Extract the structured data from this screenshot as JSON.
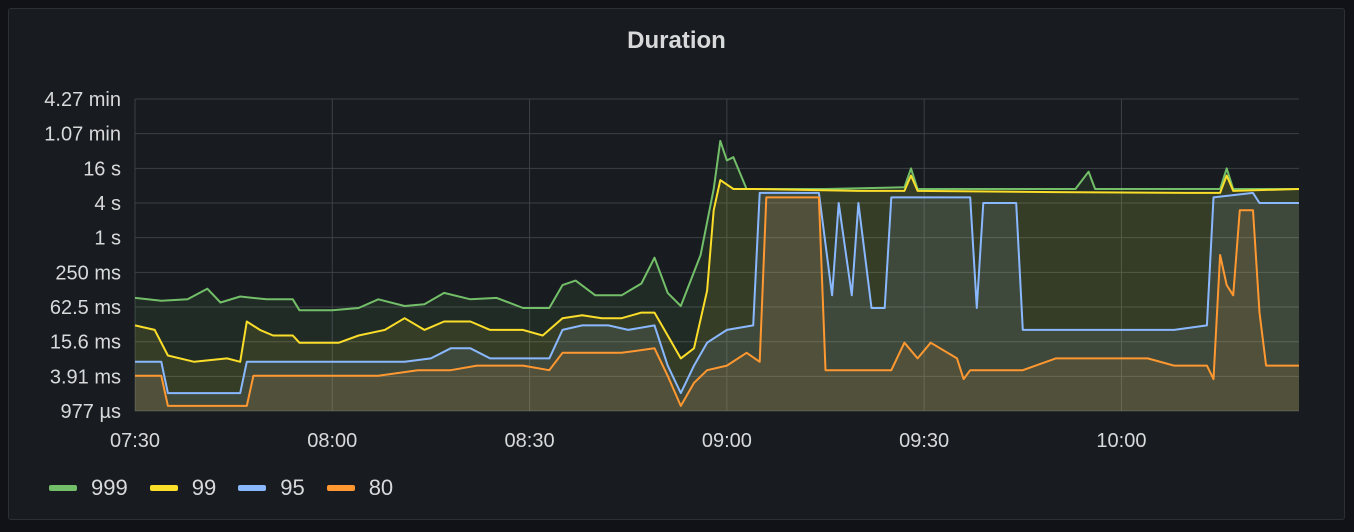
{
  "panel": {
    "title": "Duration"
  },
  "colors": {
    "background": "#181b1f",
    "grid": "#3d4046",
    "text": "#d8d9da"
  },
  "chart_data": {
    "type": "line",
    "title": "Duration",
    "xlabel": "",
    "ylabel": "",
    "y_scale": "log",
    "y_ticks": [
      "4.27 min",
      "1.07 min",
      "16 s",
      "4 s",
      "1 s",
      "250 ms",
      "62.5 ms",
      "15.6 ms",
      "3.91 ms",
      "977 µs"
    ],
    "x_ticks": [
      "07:30",
      "08:00",
      "08:30",
      "09:00",
      "09:30",
      "10:00"
    ],
    "x_range": [
      "07:30",
      "10:27"
    ],
    "grid": true,
    "legend_position": "bottom-left",
    "series": [
      {
        "name": "999",
        "color": "#73bf69",
        "points": [
          [
            "07:30",
            "90 ms"
          ],
          [
            "07:34",
            "80 ms"
          ],
          [
            "07:38",
            "85 ms"
          ],
          [
            "07:41",
            "130 ms"
          ],
          [
            "07:43",
            "75 ms"
          ],
          [
            "07:46",
            "95 ms"
          ],
          [
            "07:50",
            "85 ms"
          ],
          [
            "07:54",
            "85 ms"
          ],
          [
            "07:55",
            "55 ms"
          ],
          [
            "08:00",
            "55 ms"
          ],
          [
            "08:04",
            "60 ms"
          ],
          [
            "08:07",
            "85 ms"
          ],
          [
            "08:11",
            "65 ms"
          ],
          [
            "08:14",
            "70 ms"
          ],
          [
            "08:17",
            "110 ms"
          ],
          [
            "08:21",
            "85 ms"
          ],
          [
            "08:25",
            "90 ms"
          ],
          [
            "08:29",
            "60 ms"
          ],
          [
            "08:33",
            "60 ms"
          ],
          [
            "08:35",
            "150 ms"
          ],
          [
            "08:37",
            "180 ms"
          ],
          [
            "08:40",
            "100 ms"
          ],
          [
            "08:44",
            "100 ms"
          ],
          [
            "08:47",
            "160 ms"
          ],
          [
            "08:49",
            "450 ms"
          ],
          [
            "08:51",
            "110 ms"
          ],
          [
            "08:53",
            "65 ms"
          ],
          [
            "08:56",
            "500 ms"
          ],
          [
            "08:58",
            "7 s"
          ],
          [
            "08:59",
            "48 s"
          ],
          [
            "09:00",
            "22 s"
          ],
          [
            "09:01",
            "25 s"
          ],
          [
            "09:03",
            "7 s"
          ],
          [
            "09:15",
            "7 s"
          ],
          [
            "09:27",
            "7.5 s"
          ],
          [
            "09:28",
            "16 s"
          ],
          [
            "09:29",
            "7 s"
          ],
          [
            "09:53",
            "7 s"
          ],
          [
            "09:55",
            "14 s"
          ],
          [
            "09:56",
            "7 s"
          ],
          [
            "10:15",
            "7 s"
          ],
          [
            "10:16",
            "16 s"
          ],
          [
            "10:17",
            "7 s"
          ],
          [
            "10:27",
            "7 s"
          ]
        ]
      },
      {
        "name": "99",
        "color": "#fade2a",
        "points": [
          [
            "07:30",
            "30 ms"
          ],
          [
            "07:33",
            "25 ms"
          ],
          [
            "07:35",
            "9 ms"
          ],
          [
            "07:39",
            "7 ms"
          ],
          [
            "07:44",
            "8 ms"
          ],
          [
            "07:46",
            "7 ms"
          ],
          [
            "07:47",
            "35 ms"
          ],
          [
            "07:49",
            "25 ms"
          ],
          [
            "07:51",
            "20 ms"
          ],
          [
            "07:54",
            "20 ms"
          ],
          [
            "07:55",
            "15 ms"
          ],
          [
            "08:01",
            "15 ms"
          ],
          [
            "08:04",
            "20 ms"
          ],
          [
            "08:08",
            "25 ms"
          ],
          [
            "08:11",
            "40 ms"
          ],
          [
            "08:14",
            "25 ms"
          ],
          [
            "08:17",
            "35 ms"
          ],
          [
            "08:21",
            "35 ms"
          ],
          [
            "08:24",
            "25 ms"
          ],
          [
            "08:29",
            "25 ms"
          ],
          [
            "08:32",
            "20 ms"
          ],
          [
            "08:35",
            "40 ms"
          ],
          [
            "08:38",
            "45 ms"
          ],
          [
            "08:41",
            "40 ms"
          ],
          [
            "08:44",
            "40 ms"
          ],
          [
            "08:47",
            "50 ms"
          ],
          [
            "08:49",
            "50 ms"
          ],
          [
            "08:51",
            "20 ms"
          ],
          [
            "08:53",
            "8 ms"
          ],
          [
            "08:55",
            "12 ms"
          ],
          [
            "08:57",
            "120 ms"
          ],
          [
            "08:58",
            "3 s"
          ],
          [
            "08:59",
            "10 s"
          ],
          [
            "09:01",
            "7 s"
          ],
          [
            "09:04",
            "7 s"
          ],
          [
            "09:20",
            "6.5 s"
          ],
          [
            "09:27",
            "6.5 s"
          ],
          [
            "09:28",
            "12 s"
          ],
          [
            "09:29",
            "6.5 s"
          ],
          [
            "09:50",
            "6.2 s"
          ],
          [
            "10:10",
            "6 s"
          ],
          [
            "10:15",
            "6 s"
          ],
          [
            "10:16",
            "12 s"
          ],
          [
            "10:17",
            "6.5 s"
          ],
          [
            "10:27",
            "7 s"
          ]
        ]
      },
      {
        "name": "95",
        "color": "#8ab8ff",
        "points": [
          [
            "07:30",
            "7 ms"
          ],
          [
            "07:34",
            "7 ms"
          ],
          [
            "07:35",
            "2 ms"
          ],
          [
            "07:44",
            "2 ms"
          ],
          [
            "07:46",
            "2 ms"
          ],
          [
            "07:47",
            "7 ms"
          ],
          [
            "07:54",
            "7 ms"
          ],
          [
            "07:55",
            "7 ms"
          ],
          [
            "08:01",
            "7 ms"
          ],
          [
            "08:04",
            "7 ms"
          ],
          [
            "08:08",
            "7 ms"
          ],
          [
            "08:11",
            "7 ms"
          ],
          [
            "08:15",
            "8 ms"
          ],
          [
            "08:18",
            "12 ms"
          ],
          [
            "08:21",
            "12 ms"
          ],
          [
            "08:24",
            "8 ms"
          ],
          [
            "08:29",
            "8 ms"
          ],
          [
            "08:33",
            "8 ms"
          ],
          [
            "08:35",
            "25 ms"
          ],
          [
            "08:38",
            "30 ms"
          ],
          [
            "08:42",
            "30 ms"
          ],
          [
            "08:45",
            "25 ms"
          ],
          [
            "08:49",
            "30 ms"
          ],
          [
            "08:51",
            "6 ms"
          ],
          [
            "08:53",
            "2 ms"
          ],
          [
            "08:55",
            "6 ms"
          ],
          [
            "08:57",
            "15 ms"
          ],
          [
            "09:00",
            "25 ms"
          ],
          [
            "09:04",
            "30 ms"
          ],
          [
            "09:05",
            "6 s"
          ],
          [
            "09:14",
            "6 s"
          ],
          [
            "09:16",
            "100 ms"
          ],
          [
            "09:17",
            "4 s"
          ],
          [
            "09:19",
            "100 ms"
          ],
          [
            "09:20",
            "4 s"
          ],
          [
            "09:22",
            "60 ms"
          ],
          [
            "09:24",
            "60 ms"
          ],
          [
            "09:25",
            "5 s"
          ],
          [
            "09:37",
            "5 s"
          ],
          [
            "09:38",
            "60 ms"
          ],
          [
            "09:39",
            "4 s"
          ],
          [
            "09:44",
            "4 s"
          ],
          [
            "09:45",
            "25 ms"
          ],
          [
            "09:52",
            "25 ms"
          ],
          [
            "10:00",
            "25 ms"
          ],
          [
            "10:08",
            "25 ms"
          ],
          [
            "10:13",
            "30 ms"
          ],
          [
            "10:14",
            "5 s"
          ],
          [
            "10:20",
            "6 s"
          ],
          [
            "10:21",
            "4 s"
          ],
          [
            "10:27",
            "4 s"
          ]
        ]
      },
      {
        "name": "80",
        "color": "#ff9830",
        "points": [
          [
            "07:30",
            "4 ms"
          ],
          [
            "07:34",
            "4 ms"
          ],
          [
            "07:35",
            "1.2 ms"
          ],
          [
            "07:47",
            "1.2 ms"
          ],
          [
            "07:48",
            "4 ms"
          ],
          [
            "08:01",
            "4 ms"
          ],
          [
            "08:07",
            "4 ms"
          ],
          [
            "08:13",
            "5 ms"
          ],
          [
            "08:18",
            "5 ms"
          ],
          [
            "08:22",
            "6 ms"
          ],
          [
            "08:29",
            "6 ms"
          ],
          [
            "08:33",
            "5 ms"
          ],
          [
            "08:35",
            "10 ms"
          ],
          [
            "08:39",
            "10 ms"
          ],
          [
            "08:44",
            "10 ms"
          ],
          [
            "08:49",
            "12 ms"
          ],
          [
            "08:51",
            "4 ms"
          ],
          [
            "08:53",
            "1.2 ms"
          ],
          [
            "08:55",
            "3 ms"
          ],
          [
            "08:57",
            "5 ms"
          ],
          [
            "09:00",
            "6 ms"
          ],
          [
            "09:03",
            "10 ms"
          ],
          [
            "09:05",
            "7 ms"
          ],
          [
            "09:06",
            "5 s"
          ],
          [
            "09:14",
            "5 s"
          ],
          [
            "09:15",
            "5 ms"
          ],
          [
            "09:25",
            "5 ms"
          ],
          [
            "09:27",
            "15 ms"
          ],
          [
            "09:29",
            "8 ms"
          ],
          [
            "09:31",
            "15 ms"
          ],
          [
            "09:35",
            "8 ms"
          ],
          [
            "09:36",
            "3.5 ms"
          ],
          [
            "09:37",
            "5 ms"
          ],
          [
            "09:45",
            "5 ms"
          ],
          [
            "09:50",
            "8 ms"
          ],
          [
            "09:55",
            "8 ms"
          ],
          [
            "10:00",
            "8 ms"
          ],
          [
            "10:04",
            "8 ms"
          ],
          [
            "10:08",
            "6 ms"
          ],
          [
            "10:13",
            "6 ms"
          ],
          [
            "10:14",
            "3.5 ms"
          ],
          [
            "10:15",
            "500 ms"
          ],
          [
            "10:16",
            "150 ms"
          ],
          [
            "10:17",
            "100 ms"
          ],
          [
            "10:18",
            "3 s"
          ],
          [
            "10:20",
            "3 s"
          ],
          [
            "10:21",
            "50 ms"
          ],
          [
            "10:22",
            "6 ms"
          ],
          [
            "10:27",
            "6 ms"
          ]
        ]
      }
    ]
  }
}
